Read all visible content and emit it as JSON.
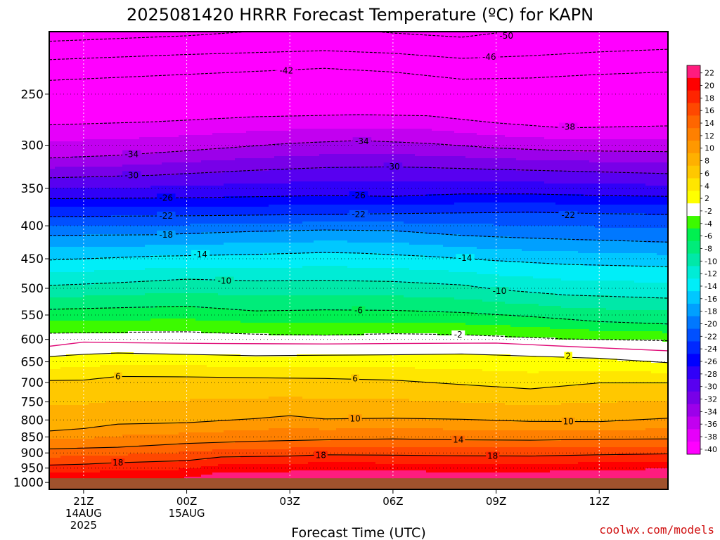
{
  "title": "2025081420 HRRR Forecast Temperature (ºC) for KAPN",
  "credit": "coolwx.com/models",
  "chart_data": {
    "type": "heatmap",
    "title": "2025081420 HRRR Forecast Temperature (ºC) for KAPN",
    "xlabel": "Forecast Time (UTC)",
    "ylabel": "",
    "y_scale": "log",
    "y_reversed": true,
    "y_ticks": [
      250,
      300,
      350,
      400,
      450,
      500,
      550,
      600,
      650,
      700,
      750,
      800,
      850,
      900,
      950,
      1000
    ],
    "x_ticks": [
      {
        "label": "21Z",
        "line2": "14AUG",
        "line3": "2025"
      },
      {
        "label": "00Z",
        "line2": "15AUG",
        "line3": ""
      },
      {
        "label": "03Z",
        "line2": "",
        "line3": ""
      },
      {
        "label": "06Z",
        "line2": "",
        "line3": ""
      },
      {
        "label": "09Z",
        "line2": "",
        "line3": ""
      },
      {
        "label": "12Z",
        "line2": "",
        "line3": ""
      }
    ],
    "x_hours": [
      20,
      21,
      22,
      23,
      24,
      25,
      26,
      27,
      28,
      29,
      30,
      31,
      32,
      33,
      34,
      35,
      36,
      37,
      38
    ],
    "x_range_hours": [
      20,
      38
    ],
    "y_range_hpa": [
      200,
      1025
    ],
    "surface_pressure_hpa": 985,
    "colorbar": {
      "labels": [
        22,
        20,
        18,
        16,
        14,
        12,
        10,
        8,
        6,
        4,
        2,
        -2,
        -4,
        -6,
        -8,
        -10,
        -12,
        -14,
        -16,
        -18,
        -20,
        -22,
        -24,
        -26,
        -28,
        -30,
        -32,
        -34,
        -36,
        -38,
        -40
      ],
      "colors": [
        "#ff1c7e",
        "#ff0000",
        "#ff2400",
        "#ff4800",
        "#ff6600",
        "#ff8000",
        "#ff9800",
        "#ffb000",
        "#ffc800",
        "#ffe600",
        "#ffff00",
        "#ffffff",
        "#3cfa00",
        "#00f050",
        "#00ec7a",
        "#00e8a8",
        "#00ecd6",
        "#00eef8",
        "#00c8ff",
        "#00a0ff",
        "#0078ff",
        "#0050ff",
        "#0028ff",
        "#0000ff",
        "#3000f8",
        "#5800f0",
        "#7800e8",
        "#9c00ea",
        "#c200f0",
        "#e600fa",
        "#ff00ff"
      ]
    },
    "contour_lines": [
      {
        "temp": -50,
        "points": [
          [
            20,
            207
          ],
          [
            24,
            203
          ],
          [
            27,
            198
          ],
          [
            29,
            199
          ],
          [
            30,
            201
          ],
          [
            32,
            204
          ],
          [
            34,
            198
          ],
          [
            35,
            193
          ],
          [
            38,
            192
          ]
        ]
      },
      {
        "temp": -46,
        "points": [
          [
            20,
            221
          ],
          [
            24,
            217
          ],
          [
            28,
            214
          ],
          [
            30,
            216
          ],
          [
            32,
            220
          ],
          [
            34,
            218
          ],
          [
            36,
            215
          ],
          [
            38,
            213
          ]
        ]
      },
      {
        "temp": -42,
        "points": [
          [
            20,
            238
          ],
          [
            24,
            233
          ],
          [
            28,
            228
          ],
          [
            30,
            231
          ],
          [
            32,
            237
          ],
          [
            34,
            236
          ],
          [
            36,
            233
          ],
          [
            38,
            231
          ]
        ]
      },
      {
        "temp": -38,
        "points": [
          [
            20,
            279
          ],
          [
            23,
            276
          ],
          [
            26,
            271
          ],
          [
            29,
            269
          ],
          [
            31,
            270
          ],
          [
            33,
            277
          ],
          [
            35,
            282
          ],
          [
            38,
            280
          ]
        ]
      },
      {
        "temp": -34,
        "points": [
          [
            20,
            314
          ],
          [
            22,
            311
          ],
          [
            24,
            306
          ],
          [
            27,
            298
          ],
          [
            29,
            295
          ],
          [
            31,
            298
          ],
          [
            33,
            303
          ],
          [
            35,
            306
          ],
          [
            38,
            307
          ]
        ]
      },
      {
        "temp": -30,
        "points": [
          [
            20,
            337
          ],
          [
            23,
            334
          ],
          [
            26,
            328
          ],
          [
            28,
            325
          ],
          [
            30,
            324
          ],
          [
            32,
            326
          ],
          [
            34,
            328
          ],
          [
            36,
            330
          ],
          [
            38,
            332
          ]
        ]
      },
      {
        "temp": -26,
        "points": [
          [
            20,
            363
          ],
          [
            24,
            362
          ],
          [
            28,
            359
          ],
          [
            30,
            360
          ],
          [
            32,
            357
          ],
          [
            34,
            357
          ],
          [
            36,
            359
          ],
          [
            38,
            360
          ]
        ]
      },
      {
        "temp": -22,
        "points": [
          [
            20,
            387
          ],
          [
            24,
            386
          ],
          [
            28,
            384
          ],
          [
            30,
            383
          ],
          [
            32,
            382
          ],
          [
            34,
            381
          ],
          [
            36,
            383
          ],
          [
            38,
            384
          ]
        ]
      },
      {
        "temp": -18,
        "points": [
          [
            20,
            414
          ],
          [
            23,
            413
          ],
          [
            26,
            408
          ],
          [
            28,
            406
          ],
          [
            30,
            407
          ],
          [
            32,
            414
          ],
          [
            34,
            418
          ],
          [
            36,
            421
          ],
          [
            38,
            424
          ]
        ]
      },
      {
        "temp": -14,
        "points": [
          [
            20,
            452
          ],
          [
            23,
            446
          ],
          [
            26,
            443
          ],
          [
            28,
            440
          ],
          [
            29,
            441
          ],
          [
            31,
            446
          ],
          [
            33,
            453
          ],
          [
            35,
            459
          ],
          [
            38,
            463
          ]
        ]
      },
      {
        "temp": -10,
        "points": [
          [
            20,
            495
          ],
          [
            22,
            490
          ],
          [
            24,
            484
          ],
          [
            26,
            487
          ],
          [
            28,
            486
          ],
          [
            30,
            488
          ],
          [
            32,
            494
          ],
          [
            33,
            502
          ],
          [
            35,
            512
          ],
          [
            38,
            518
          ]
        ]
      },
      {
        "temp": -6,
        "points": [
          [
            20,
            539
          ],
          [
            22,
            536
          ],
          [
            24,
            533
          ],
          [
            26,
            542
          ],
          [
            28,
            540
          ],
          [
            30,
            541
          ],
          [
            32,
            545
          ],
          [
            34,
            553
          ],
          [
            36,
            563
          ],
          [
            38,
            568
          ]
        ]
      },
      {
        "temp": -2,
        "points": [
          [
            20,
            587
          ],
          [
            22,
            585
          ],
          [
            24,
            584
          ],
          [
            26,
            589
          ],
          [
            28,
            591
          ],
          [
            30,
            588
          ],
          [
            32,
            590
          ],
          [
            33,
            593
          ],
          [
            35,
            599
          ],
          [
            38,
            603
          ]
        ]
      },
      {
        "temp": 0,
        "points": [
          [
            20,
            615
          ],
          [
            21,
            606
          ],
          [
            22,
            607
          ],
          [
            25,
            609
          ],
          [
            28,
            610
          ],
          [
            30,
            609
          ],
          [
            33,
            608
          ],
          [
            35,
            615
          ],
          [
            38,
            625
          ]
        ]
      },
      {
        "temp": 2,
        "points": [
          [
            20,
            638
          ],
          [
            21,
            633
          ],
          [
            22,
            630
          ],
          [
            24,
            633
          ],
          [
            26,
            636
          ],
          [
            28,
            635
          ],
          [
            30,
            634
          ],
          [
            32,
            632
          ],
          [
            34,
            637
          ],
          [
            36,
            642
          ],
          [
            38,
            652
          ]
        ]
      },
      {
        "temp": 6,
        "points": [
          [
            20,
            695
          ],
          [
            21,
            694
          ],
          [
            22,
            685
          ],
          [
            24,
            686
          ],
          [
            26,
            688
          ],
          [
            28,
            690
          ],
          [
            30,
            694
          ],
          [
            32,
            705
          ],
          [
            34,
            716
          ],
          [
            36,
            701
          ],
          [
            38,
            701
          ]
        ]
      },
      {
        "temp": 10,
        "points": [
          [
            20,
            832
          ],
          [
            21,
            825
          ],
          [
            22,
            812
          ],
          [
            24,
            808
          ],
          [
            26,
            796
          ],
          [
            27,
            788
          ],
          [
            28,
            797
          ],
          [
            30,
            795
          ],
          [
            32,
            798
          ],
          [
            34,
            804
          ],
          [
            36,
            805
          ],
          [
            38,
            795
          ]
        ]
      },
      {
        "temp": 14,
        "points": [
          [
            20,
            887
          ],
          [
            22,
            882
          ],
          [
            24,
            870
          ],
          [
            26,
            863
          ],
          [
            28,
            859
          ],
          [
            30,
            856
          ],
          [
            32,
            859
          ],
          [
            34,
            860
          ],
          [
            36,
            857
          ],
          [
            38,
            856
          ]
        ]
      },
      {
        "temp": 18,
        "points": [
          [
            20,
            940
          ],
          [
            21,
            937
          ],
          [
            22,
            932
          ],
          [
            24,
            925
          ],
          [
            25,
            913
          ],
          [
            27,
            910
          ],
          [
            28,
            906
          ],
          [
            30,
            907
          ],
          [
            32,
            909
          ],
          [
            34,
            910
          ],
          [
            36,
            906
          ],
          [
            38,
            903
          ]
        ]
      }
    ],
    "contour_labels": [
      {
        "text": "-50",
        "x": 33.3,
        "p": 203
      },
      {
        "text": "-46",
        "x": 32.8,
        "p": 219
      },
      {
        "text": "-42",
        "x": 26.9,
        "p": 230
      },
      {
        "text": "-38",
        "x": 35.1,
        "p": 281
      },
      {
        "text": "-34",
        "x": 22.4,
        "p": 310
      },
      {
        "text": "-34",
        "x": 29.1,
        "p": 296
      },
      {
        "text": "-30",
        "x": 22.4,
        "p": 334
      },
      {
        "text": "-30",
        "x": 30.0,
        "p": 324
      },
      {
        "text": "-26",
        "x": 23.4,
        "p": 362
      },
      {
        "text": "-26",
        "x": 29.0,
        "p": 359
      },
      {
        "text": "-22",
        "x": 23.4,
        "p": 386
      },
      {
        "text": "-22",
        "x": 29.0,
        "p": 384
      },
      {
        "text": "-22",
        "x": 35.1,
        "p": 385
      },
      {
        "text": "-18",
        "x": 23.4,
        "p": 413
      },
      {
        "text": "-14",
        "x": 24.4,
        "p": 443
      },
      {
        "text": "-14",
        "x": 32.1,
        "p": 449
      },
      {
        "text": "-10",
        "x": 25.1,
        "p": 487
      },
      {
        "text": "-10",
        "x": 33.1,
        "p": 505
      },
      {
        "text": "-6",
        "x": 29.0,
        "p": 541
      },
      {
        "text": "-2",
        "x": 31.9,
        "p": 590
      },
      {
        "text": "2",
        "x": 35.1,
        "p": 637
      },
      {
        "text": "6",
        "x": 22.0,
        "p": 685
      },
      {
        "text": "6",
        "x": 28.9,
        "p": 690
      },
      {
        "text": "10",
        "x": 28.9,
        "p": 796
      },
      {
        "text": "10",
        "x": 35.1,
        "p": 805
      },
      {
        "text": "14",
        "x": 31.9,
        "p": 859
      },
      {
        "text": "18",
        "x": 22.0,
        "p": 932
      },
      {
        "text": "18",
        "x": 27.9,
        "p": 907
      },
      {
        "text": "18",
        "x": 32.9,
        "p": 910
      }
    ]
  }
}
